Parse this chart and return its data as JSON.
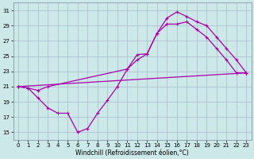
{
  "xlabel": "Windchill (Refroidissement éolien,°C)",
  "x_ticks": [
    0,
    1,
    2,
    3,
    4,
    5,
    6,
    7,
    8,
    9,
    10,
    11,
    12,
    13,
    14,
    15,
    16,
    17,
    18,
    19,
    20,
    21,
    22,
    23
  ],
  "y_ticks": [
    15,
    17,
    19,
    21,
    23,
    25,
    27,
    29,
    31
  ],
  "xlim": [
    -0.5,
    23.5
  ],
  "ylim": [
    14.0,
    32.0
  ],
  "bg_color": "#cce8e8",
  "grid_color": "#aabbcc",
  "line_color": "#aa00aa",
  "line1_x": [
    0,
    23
  ],
  "line1_y": [
    21,
    22.8
  ],
  "line2_x": [
    0,
    1,
    2,
    3,
    4,
    5,
    6,
    7,
    8,
    9,
    10,
    11,
    12,
    13,
    14,
    15,
    16,
    17,
    18,
    19,
    20,
    21,
    22,
    23
  ],
  "line2_y": [
    21,
    20.8,
    19.5,
    18.2,
    17.5,
    17.5,
    15.0,
    15.5,
    17.5,
    19.2,
    21.0,
    23.3,
    25.2,
    25.3,
    28.0,
    29.2,
    29.2,
    29.5,
    28.5,
    27.5,
    26.0,
    24.5,
    22.8,
    22.8
  ],
  "line3_x": [
    0,
    1,
    2,
    3,
    11,
    12,
    13,
    14,
    15,
    16,
    17,
    18,
    19,
    20,
    21,
    22,
    23
  ],
  "line3_y": [
    21,
    20.8,
    20.5,
    21.0,
    23.3,
    24.5,
    25.3,
    28.0,
    30.0,
    30.8,
    30.2,
    29.5,
    29.0,
    27.5,
    26.0,
    24.5,
    22.8
  ]
}
